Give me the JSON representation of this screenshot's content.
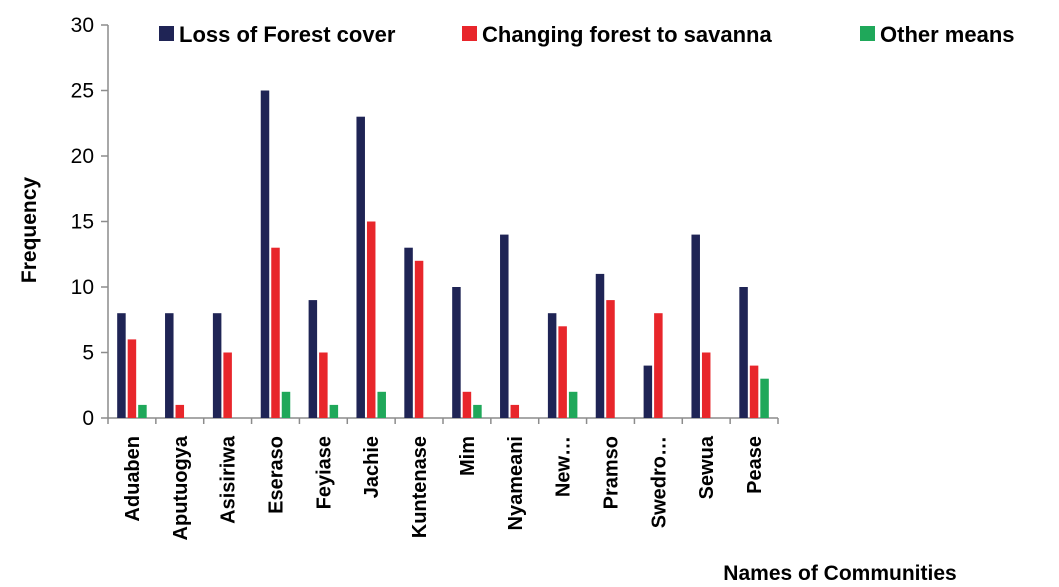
{
  "chart_data": {
    "type": "bar",
    "title": "",
    "xlabel": "Names of Communities",
    "ylabel": "Frequency",
    "ylim": [
      0,
      30
    ],
    "yticks": [
      0,
      5,
      10,
      15,
      20,
      25,
      30
    ],
    "grid": false,
    "legend_position": "top",
    "categories": [
      "Aduaben",
      "Aputuogya",
      "Asisiriwa",
      "Eseraso",
      "Feyiase",
      "Jachie",
      "Kuntenase",
      "Mim",
      "Nyameani",
      "New…",
      "Pramso",
      "Swedro…",
      "Sewua",
      "Pease"
    ],
    "series": [
      {
        "name": "Loss of Forest cover",
        "color": "#1f2455",
        "values": [
          8,
          8,
          8,
          25,
          9,
          23,
          13,
          10,
          14,
          8,
          11,
          4,
          14,
          10
        ]
      },
      {
        "name": "Changing forest to savanna",
        "color": "#e8262b",
        "values": [
          6,
          1,
          5,
          13,
          5,
          15,
          12,
          2,
          1,
          7,
          9,
          8,
          5,
          4
        ]
      },
      {
        "name": "Other means",
        "color": "#1fa85a",
        "values": [
          1,
          0,
          0,
          2,
          1,
          2,
          0,
          1,
          0,
          2,
          0,
          0,
          0,
          3
        ]
      }
    ]
  }
}
